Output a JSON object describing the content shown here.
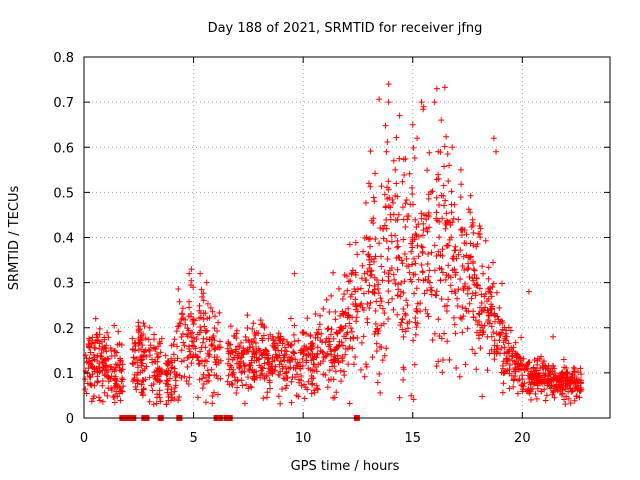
{
  "chart_data": {
    "type": "scatter",
    "title": "Day 188 of 2021, SRMTID for receiver jfng",
    "xlabel": "GPS time / hours",
    "ylabel": "SRMTID / TECUs",
    "xlim": [
      0,
      24
    ],
    "ylim": [
      0,
      0.8
    ],
    "x_ticks": [
      0,
      5,
      10,
      15,
      20
    ],
    "x_tick_labels": [
      "0",
      "5",
      "10",
      "15",
      "20"
    ],
    "y_ticks": [
      0,
      0.1,
      0.2,
      0.3,
      0.4,
      0.5,
      0.6,
      0.7,
      0.8
    ],
    "y_tick_labels": [
      "0",
      "0.1",
      "0.2",
      "0.3",
      "0.4",
      "0.5",
      "0.6",
      "0.7",
      "0.8"
    ],
    "grid": true,
    "marker": "plus",
    "color": "#ff0000",
    "envelope": {
      "description": "Point cloud envelope (approximate): median and spread of SRMTID vs time",
      "x": [
        0.0,
        0.5,
        1.0,
        1.5,
        2.0,
        2.5,
        3.0,
        3.5,
        4.0,
        4.5,
        5.0,
        5.5,
        6.0,
        6.5,
        7.0,
        7.5,
        8.0,
        8.5,
        9.0,
        9.5,
        10.0,
        10.5,
        11.0,
        11.5,
        12.0,
        12.5,
        13.0,
        13.5,
        14.0,
        14.5,
        15.0,
        15.5,
        16.0,
        16.5,
        17.0,
        17.5,
        18.0,
        18.5,
        19.0,
        19.5,
        20.0,
        20.5,
        21.0,
        21.5,
        22.0,
        22.5
      ],
      "median": [
        0.11,
        0.13,
        0.12,
        0.1,
        0.09,
        0.14,
        0.12,
        0.1,
        0.08,
        0.2,
        0.17,
        0.16,
        0.14,
        0.12,
        0.13,
        0.13,
        0.14,
        0.13,
        0.12,
        0.13,
        0.13,
        0.14,
        0.16,
        0.14,
        0.2,
        0.27,
        0.32,
        0.32,
        0.35,
        0.35,
        0.33,
        0.37,
        0.36,
        0.38,
        0.35,
        0.32,
        0.27,
        0.24,
        0.18,
        0.13,
        0.1,
        0.09,
        0.09,
        0.08,
        0.08,
        0.07
      ],
      "spread": [
        0.04,
        0.04,
        0.04,
        0.04,
        0.03,
        0.04,
        0.04,
        0.04,
        0.04,
        0.06,
        0.05,
        0.06,
        0.04,
        0.04,
        0.04,
        0.04,
        0.04,
        0.04,
        0.03,
        0.04,
        0.04,
        0.05,
        0.05,
        0.05,
        0.07,
        0.08,
        0.1,
        0.11,
        0.12,
        0.12,
        0.11,
        0.12,
        0.11,
        0.12,
        0.1,
        0.09,
        0.08,
        0.06,
        0.05,
        0.03,
        0.03,
        0.02,
        0.02,
        0.02,
        0.02,
        0.02
      ]
    },
    "notable_points": [
      {
        "x": 13.9,
        "y": 0.74
      },
      {
        "x": 13.9,
        "y": 0.7
      },
      {
        "x": 14.4,
        "y": 0.67
      },
      {
        "x": 15.0,
        "y": 0.65
      },
      {
        "x": 15.4,
        "y": 0.7
      },
      {
        "x": 15.5,
        "y": 0.69
      },
      {
        "x": 15.2,
        "y": 0.62
      },
      {
        "x": 16.1,
        "y": 0.73
      },
      {
        "x": 16.0,
        "y": 0.7
      },
      {
        "x": 16.3,
        "y": 0.66
      },
      {
        "x": 13.8,
        "y": 0.59
      },
      {
        "x": 16.8,
        "y": 0.6
      },
      {
        "x": 18.7,
        "y": 0.62
      },
      {
        "x": 18.8,
        "y": 0.59
      },
      {
        "x": 13.0,
        "y": 0.52
      },
      {
        "x": 14.2,
        "y": 0.55
      },
      {
        "x": 17.2,
        "y": 0.55
      },
      {
        "x": 4.9,
        "y": 0.33
      },
      {
        "x": 4.8,
        "y": 0.32
      },
      {
        "x": 5.3,
        "y": 0.32
      },
      {
        "x": 5.6,
        "y": 0.3
      },
      {
        "x": 9.6,
        "y": 0.32
      },
      {
        "x": 20.3,
        "y": 0.28
      },
      {
        "x": 12.8,
        "y": 0.32
      },
      {
        "x": 3.0,
        "y": 0.2
      },
      {
        "x": 2.5,
        "y": 0.19
      },
      {
        "x": 21.4,
        "y": 0.18
      }
    ],
    "zero_points_x": [
      1.75,
      1.95,
      2.05,
      2.25,
      2.75,
      2.85,
      3.5,
      4.35,
      6.05,
      6.2,
      6.5,
      6.65,
      12.45
    ],
    "series_count_estimate": 2100
  }
}
